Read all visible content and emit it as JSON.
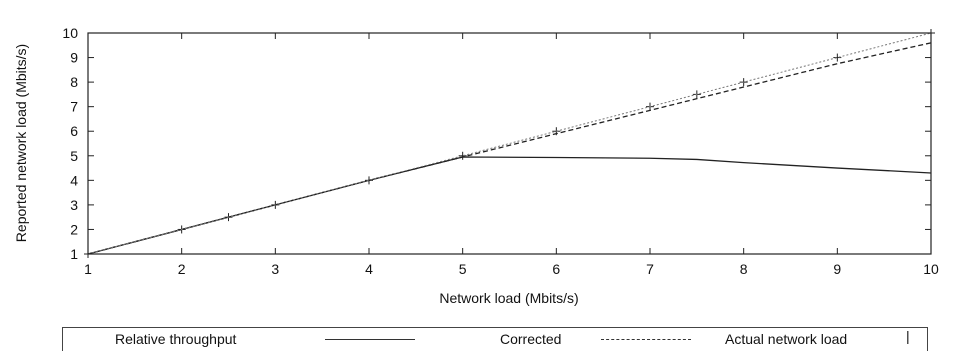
{
  "chart_data": {
    "type": "line",
    "xlabel": "Network load (Mbits/s)",
    "ylabel": "Reported network load (Mbits/s)",
    "xlim": [
      1,
      10
    ],
    "ylim": [
      1,
      10
    ],
    "x_ticks": [
      1,
      2,
      3,
      4,
      5,
      6,
      7,
      8,
      9,
      10
    ],
    "y_ticks": [
      1,
      2,
      3,
      4,
      5,
      6,
      7,
      8,
      9,
      10
    ],
    "grid": false,
    "legend_position": "bottom",
    "series": [
      {
        "name": "Relative throughput",
        "style": "solid",
        "x": [
          1,
          2,
          3,
          4,
          5,
          6,
          7,
          7.5,
          8,
          9,
          10
        ],
        "y": [
          1,
          2,
          3,
          4,
          4.95,
          4.93,
          4.9,
          4.85,
          4.72,
          4.5,
          4.3
        ]
      },
      {
        "name": "Corrected",
        "style": "dashed",
        "x": [
          1,
          2,
          3,
          4,
          5,
          6,
          7,
          8,
          9,
          10
        ],
        "y": [
          1,
          2,
          3,
          4,
          4.95,
          5.9,
          6.85,
          7.8,
          8.75,
          9.6
        ]
      },
      {
        "name": "Actual network load",
        "style": "markers",
        "x": [
          1,
          2,
          2.5,
          3,
          4,
          5,
          6,
          7,
          7.5,
          8,
          9,
          10
        ],
        "y": [
          1,
          2,
          2.5,
          3,
          4,
          5,
          6,
          7,
          7.5,
          8,
          9,
          10
        ]
      }
    ]
  }
}
